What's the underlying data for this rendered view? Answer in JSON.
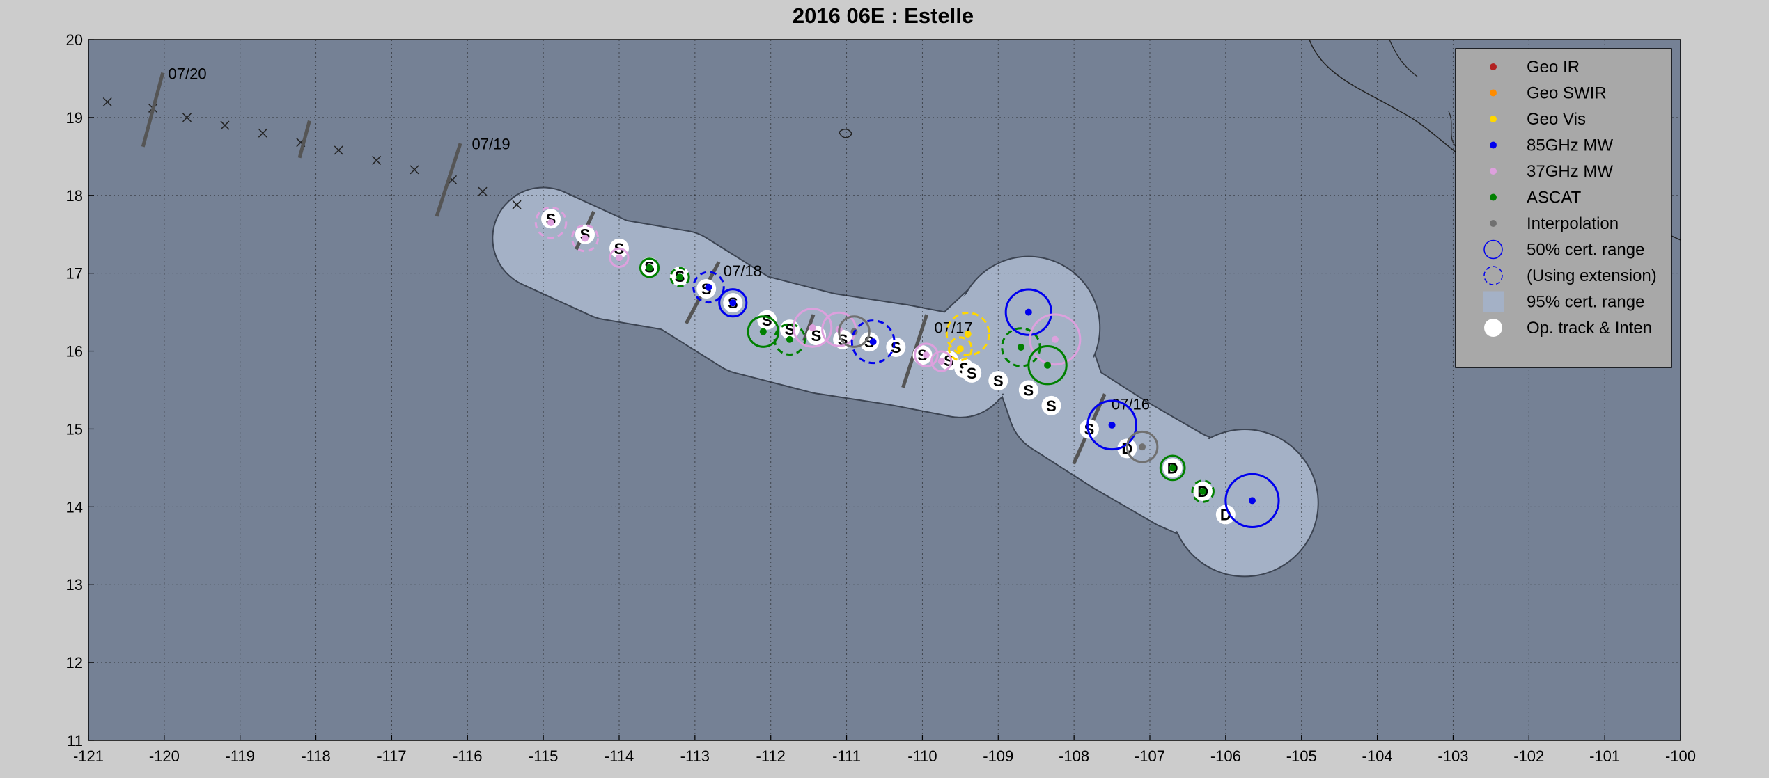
{
  "chart_data": {
    "type": "scatter",
    "title": "2016  06E :  Estelle",
    "xlim": [
      -121,
      -100
    ],
    "ylim": [
      11,
      20
    ],
    "xticks": [
      -121,
      -120,
      -119,
      -118,
      -117,
      -116,
      -115,
      -114,
      -113,
      -112,
      -111,
      -110,
      -109,
      -108,
      -107,
      -106,
      -105,
      -104,
      -103,
      -102,
      -101,
      -100
    ],
    "yticks": [
      11,
      12,
      13,
      14,
      15,
      16,
      17,
      18,
      19,
      20
    ],
    "grid": true,
    "legend_position": "top-right",
    "colors": {
      "background": "#cccccc",
      "ocean": "#758195",
      "cert95": "#a4b1c6",
      "geo_ir": "#b22222",
      "geo_swir": "#ff8c00",
      "geo_vis": "#ffd700",
      "mw85": "#0000ee",
      "mw37": "#dda0dd",
      "ascat": "#008000",
      "interp": "#707070"
    },
    "legend": [
      {
        "key": "geo_ir",
        "label": "Geo IR",
        "marker": "dot"
      },
      {
        "key": "geo_swir",
        "label": "Geo SWIR",
        "marker": "dot"
      },
      {
        "key": "geo_vis",
        "label": "Geo Vis",
        "marker": "dot"
      },
      {
        "key": "mw85",
        "label": "85GHz MW",
        "marker": "dot"
      },
      {
        "key": "mw37",
        "label": "37GHz MW",
        "marker": "dot"
      },
      {
        "key": "ascat",
        "label": "ASCAT",
        "marker": "dot"
      },
      {
        "key": "interp",
        "label": "Interpolation",
        "marker": "dot"
      },
      {
        "key": "mw85",
        "label": "50% cert. range",
        "marker": "circle"
      },
      {
        "key": "mw85",
        "label": "(Using extension)",
        "marker": "dashed-circle"
      },
      {
        "key": "cert95",
        "label": "95% cert. range",
        "marker": "square"
      },
      {
        "key": "white",
        "label": "Op. track & Inten",
        "marker": "white-dot"
      }
    ],
    "date_markers": [
      {
        "label": "07/20",
        "x": -120.15,
        "y": 19.1
      },
      {
        "label": "07/19",
        "x": -116.2,
        "y": 18.2
      },
      {
        "label": "07/18",
        "x": -112.9,
        "y": 16.8
      },
      {
        "label": "07/17",
        "x": -110.1,
        "y": 16.0
      },
      {
        "label": "07/16",
        "x": -107.8,
        "y": 15.0
      }
    ],
    "forecast_track": [
      {
        "x": -120.75,
        "y": 19.2
      },
      {
        "x": -120.15,
        "y": 19.12
      },
      {
        "x": -119.7,
        "y": 19.0
      },
      {
        "x": -119.2,
        "y": 18.9
      },
      {
        "x": -118.7,
        "y": 18.8
      },
      {
        "x": -118.2,
        "y": 18.68
      },
      {
        "x": -117.7,
        "y": 18.58
      },
      {
        "x": -117.2,
        "y": 18.45
      },
      {
        "x": -116.7,
        "y": 18.33
      },
      {
        "x": -116.2,
        "y": 18.2
      },
      {
        "x": -115.8,
        "y": 18.05
      },
      {
        "x": -115.35,
        "y": 17.88
      }
    ],
    "op_track": [
      {
        "x": -114.9,
        "y": 17.7,
        "inten": "S"
      },
      {
        "x": -114.45,
        "y": 17.5,
        "inten": "S"
      },
      {
        "x": -114.0,
        "y": 17.32,
        "inten": "S"
      },
      {
        "x": -113.6,
        "y": 17.08,
        "inten": "S"
      },
      {
        "x": -113.2,
        "y": 16.96,
        "inten": "S"
      },
      {
        "x": -112.85,
        "y": 16.8,
        "inten": "S"
      },
      {
        "x": -112.5,
        "y": 16.62,
        "inten": "S"
      },
      {
        "x": -112.05,
        "y": 16.4,
        "inten": "S"
      },
      {
        "x": -111.75,
        "y": 16.28,
        "inten": "S"
      },
      {
        "x": -111.4,
        "y": 16.2,
        "inten": "S"
      },
      {
        "x": -111.05,
        "y": 16.15,
        "inten": "S"
      },
      {
        "x": -110.7,
        "y": 16.12,
        "inten": "S"
      },
      {
        "x": -110.35,
        "y": 16.05,
        "inten": "S"
      },
      {
        "x": -110.0,
        "y": 15.95,
        "inten": "S"
      },
      {
        "x": -109.65,
        "y": 15.88,
        "inten": "S"
      },
      {
        "x": -109.45,
        "y": 15.78,
        "inten": "S"
      },
      {
        "x": -109.35,
        "y": 15.72,
        "inten": "S"
      },
      {
        "x": -109.0,
        "y": 15.62,
        "inten": "S"
      },
      {
        "x": -108.6,
        "y": 15.5,
        "inten": "S"
      },
      {
        "x": -108.3,
        "y": 15.3,
        "inten": "S"
      },
      {
        "x": -107.8,
        "y": 15.0,
        "inten": "S"
      },
      {
        "x": -107.3,
        "y": 14.75,
        "inten": "D"
      },
      {
        "x": -106.7,
        "y": 14.5,
        "inten": "D"
      },
      {
        "x": -106.3,
        "y": 14.2,
        "inten": "D"
      },
      {
        "x": -106.0,
        "y": 13.9,
        "inten": "D"
      }
    ],
    "fixes": [
      {
        "type": "mw37",
        "x": -114.9,
        "y": 17.65,
        "r": 0.2,
        "dashed": true
      },
      {
        "type": "mw37",
        "x": -114.45,
        "y": 17.45,
        "r": 0.17,
        "dashed": true
      },
      {
        "type": "mw37",
        "x": -114.0,
        "y": 17.2,
        "r": 0.12,
        "dashed": false
      },
      {
        "type": "ascat",
        "x": -113.6,
        "y": 17.07,
        "r": 0.12,
        "dashed": false
      },
      {
        "type": "ascat",
        "x": -113.2,
        "y": 16.95,
        "r": 0.12,
        "dashed": true
      },
      {
        "type": "mw85",
        "x": -112.82,
        "y": 16.82,
        "r": 0.2,
        "dashed": true
      },
      {
        "type": "mw85",
        "x": -112.5,
        "y": 16.62,
        "r": 0.18,
        "dashed": false
      },
      {
        "type": "ascat",
        "x": -112.1,
        "y": 16.25,
        "r": 0.2,
        "dashed": false
      },
      {
        "type": "ascat",
        "x": -111.75,
        "y": 16.15,
        "r": 0.2,
        "dashed": true
      },
      {
        "type": "mw37",
        "x": -111.45,
        "y": 16.3,
        "r": 0.25,
        "dashed": false
      },
      {
        "type": "mw37",
        "x": -111.1,
        "y": 16.28,
        "r": 0.22,
        "dashed": false
      },
      {
        "type": "interp",
        "x": -110.9,
        "y": 16.25,
        "r": 0.2,
        "dashed": false
      },
      {
        "type": "mw85",
        "x": -110.65,
        "y": 16.12,
        "r": 0.28,
        "dashed": true
      },
      {
        "type": "mw37",
        "x": -109.95,
        "y": 15.95,
        "r": 0.15,
        "dashed": false
      },
      {
        "type": "mw37",
        "x": -109.75,
        "y": 15.87,
        "r": 0.13,
        "dashed": false
      },
      {
        "type": "geo_vis",
        "x": -109.4,
        "y": 16.22,
        "r": 0.28,
        "dashed": true
      },
      {
        "type": "geo_vis",
        "x": -109.5,
        "y": 16.03,
        "r": 0.15,
        "dashed": true
      },
      {
        "type": "ascat",
        "x": -108.7,
        "y": 16.05,
        "r": 0.25,
        "dashed": true
      },
      {
        "type": "mw85",
        "x": -108.6,
        "y": 16.5,
        "r": 0.3,
        "dashed": false
      },
      {
        "type": "mw37",
        "x": -108.25,
        "y": 16.15,
        "r": 0.33,
        "dashed": false
      },
      {
        "type": "ascat",
        "x": -108.35,
        "y": 15.82,
        "r": 0.25,
        "dashed": false
      },
      {
        "type": "mw85",
        "x": -107.5,
        "y": 15.05,
        "r": 0.32,
        "dashed": false
      },
      {
        "type": "interp",
        "x": -107.1,
        "y": 14.77,
        "r": 0.2,
        "dashed": false
      },
      {
        "type": "ascat",
        "x": -106.7,
        "y": 14.5,
        "r": 0.16,
        "dashed": false
      },
      {
        "type": "ascat",
        "x": -106.3,
        "y": 14.2,
        "r": 0.14,
        "dashed": true
      },
      {
        "type": "mw85",
        "x": -105.65,
        "y": 14.08,
        "r": 0.35,
        "dashed": false
      }
    ]
  }
}
